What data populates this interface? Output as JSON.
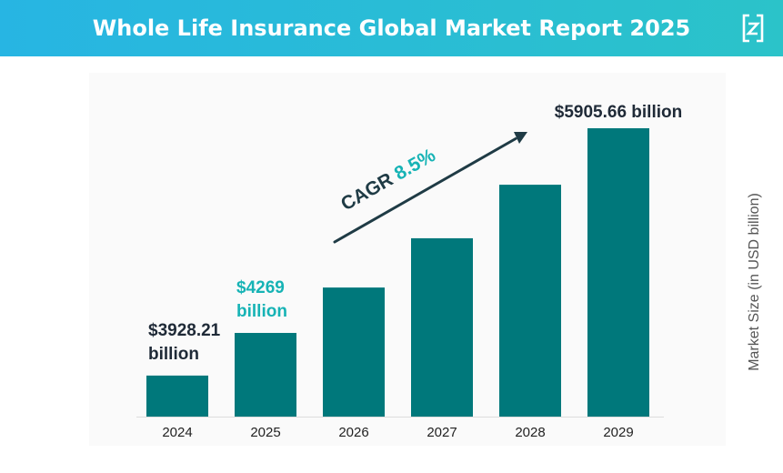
{
  "header": {
    "title": "Whole Life Insurance Global Market Report 2025"
  },
  "colors": {
    "bar": "#00787b",
    "accent": "#16b3b5",
    "label": "#1f2a37",
    "header_start": "#27b5e3",
    "header_end": "#2bc3c9"
  },
  "chart_data": {
    "type": "bar",
    "categories": [
      "2024",
      "2025",
      "2026",
      "2027",
      "2028",
      "2029"
    ],
    "values": [
      3928.21,
      4269,
      4632,
      5026,
      5454,
      5905.66
    ],
    "ylabel": "Market Size (in USD billion)",
    "ylim": [
      3600,
      6000
    ],
    "grid": false,
    "annotations": {
      "bar_labels": [
        {
          "index": 0,
          "lines": [
            "$3928.21",
            "billion"
          ],
          "highlight": false
        },
        {
          "index": 1,
          "lines": [
            "$4269",
            "billion"
          ],
          "highlight": true
        },
        {
          "index": 5,
          "lines": [
            "$5905.66 billion"
          ],
          "highlight": false
        }
      ],
      "cagr_label": "CAGR",
      "cagr_value": "8.5%"
    }
  }
}
